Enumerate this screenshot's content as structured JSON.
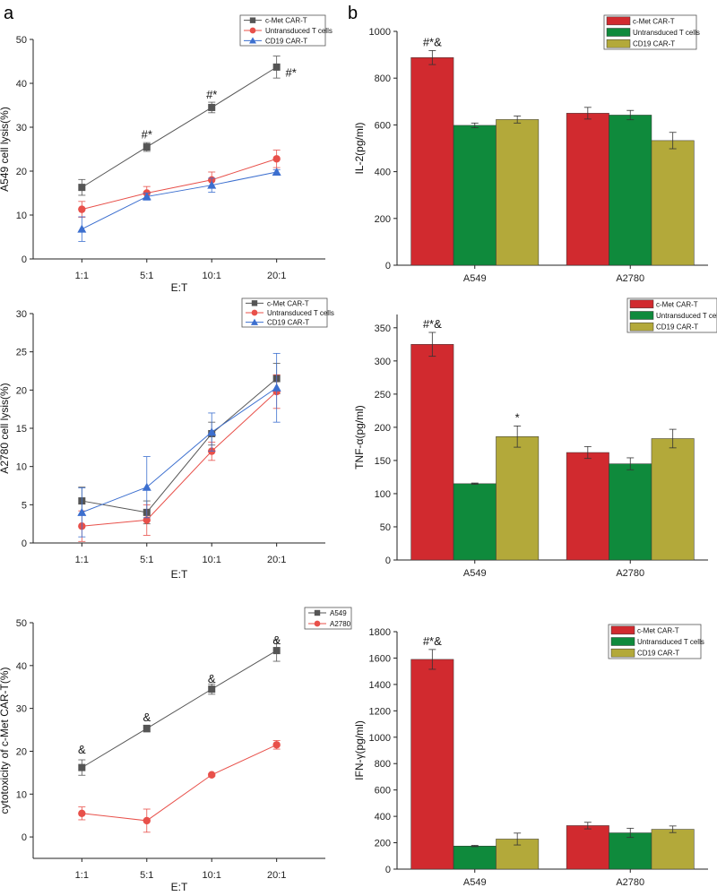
{
  "panel_labels": [
    "a",
    "b"
  ],
  "colors": {
    "cmet_line": "#555555",
    "untrans_line": "#e8504a",
    "cd19_line": "#3c6fcf",
    "bar_red": "#d12a2f",
    "bar_green": "#0f8a3c",
    "bar_olive": "#b3a93a",
    "a549_line": "#555555",
    "a2780_line": "#e8504a"
  },
  "chart_data": [
    {
      "id": "a549-lysis",
      "type": "line",
      "categories": [
        "1:1",
        "5:1",
        "10:1",
        "20:1"
      ],
      "xlabel": "E:T",
      "ylabel": "A549 cell lysis(%)",
      "ylim": [
        0,
        50
      ],
      "yticks": [
        0,
        10,
        20,
        30,
        40,
        50
      ],
      "series": [
        {
          "name": "c-Met CAR-T",
          "marker": "square",
          "color": "#555555",
          "values": [
            16.3,
            25.5,
            34.5,
            43.7
          ],
          "errors": [
            1.8,
            1.0,
            1.2,
            2.5
          ]
        },
        {
          "name": "Untransduced T cells",
          "marker": "circle",
          "color": "#e8504a",
          "values": [
            11.3,
            15.0,
            18.0,
            22.8
          ],
          "errors": [
            1.8,
            1.5,
            1.8,
            2.0
          ]
        },
        {
          "name": "CD19 CAR-T",
          "marker": "triangle",
          "color": "#3c6fcf",
          "values": [
            6.8,
            14.2,
            16.8,
            19.8
          ],
          "errors": [
            2.8,
            0.8,
            1.6,
            0.5
          ]
        }
      ],
      "annotations": [
        {
          "x": "5:1",
          "y": 27.5,
          "text": "#*"
        },
        {
          "x": "10:1",
          "y": 36.5,
          "text": "#*"
        },
        {
          "x": "20:1",
          "y": 41.5,
          "text": "#*",
          "side": "right"
        }
      ]
    },
    {
      "id": "a2780-lysis",
      "type": "line",
      "categories": [
        "1:1",
        "5:1",
        "10:1",
        "20:1"
      ],
      "xlabel": "E:T",
      "ylabel": "A2780 cell lysis(%)",
      "ylim": [
        0,
        30
      ],
      "yticks": [
        0,
        5,
        10,
        15,
        20,
        25,
        30
      ],
      "series": [
        {
          "name": "c-Met CAR-T",
          "marker": "square",
          "color": "#555555",
          "values": [
            5.5,
            4.0,
            14.3,
            21.5
          ],
          "errors": [
            1.8,
            1.5,
            1.5,
            2.0
          ]
        },
        {
          "name": "Untransduced T cells",
          "marker": "circle",
          "color": "#e8504a",
          "values": [
            2.2,
            3.0,
            12.0,
            19.8
          ],
          "errors": [
            2.0,
            2.0,
            1.2,
            2.2
          ]
        },
        {
          "name": "CD19 CAR-T",
          "marker": "triangle",
          "color": "#3c6fcf",
          "values": [
            4.0,
            7.3,
            14.5,
            20.3
          ],
          "errors": [
            3.2,
            4.0,
            2.5,
            4.5
          ]
        }
      ],
      "annotations": []
    },
    {
      "id": "cmet-cytotoxicity",
      "type": "line",
      "categories": [
        "1:1",
        "5:1",
        "10:1",
        "20:1"
      ],
      "xlabel": "E:T",
      "ylabel": "cytotoxicity of c-Met CAR-T(%)",
      "ylim": [
        -5,
        50
      ],
      "yticks": [
        0,
        10,
        20,
        30,
        40,
        50
      ],
      "series": [
        {
          "name": "A549",
          "marker": "square",
          "color": "#555555",
          "values": [
            16.2,
            25.3,
            34.5,
            43.5
          ],
          "errors": [
            1.8,
            0.8,
            1.2,
            2.5
          ]
        },
        {
          "name": "A2780",
          "marker": "circle",
          "color": "#e8504a",
          "values": [
            5.5,
            3.8,
            14.5,
            21.5
          ],
          "errors": [
            1.5,
            2.7,
            0.3,
            1.0
          ]
        }
      ],
      "annotations": [
        {
          "x": "1:1",
          "y": 19.5,
          "text": "&"
        },
        {
          "x": "5:1",
          "y": 27.0,
          "text": "&"
        },
        {
          "x": "10:1",
          "y": 36.0,
          "text": "&"
        },
        {
          "x": "20:1",
          "y": 45.0,
          "text": "&"
        }
      ]
    },
    {
      "id": "il2",
      "type": "bar",
      "categories": [
        "A549",
        "A2780"
      ],
      "ylabel": "IL-2(pg/ml)",
      "ylim": [
        0,
        1000
      ],
      "yticks": [
        0,
        200,
        400,
        600,
        800,
        1000
      ],
      "series": [
        {
          "name": "c-Met CAR-T",
          "color": "#d12a2f",
          "values": [
            888,
            650
          ],
          "errors": [
            30,
            25
          ]
        },
        {
          "name": "Untransduced T cells",
          "color": "#0f8a3c",
          "values": [
            598,
            642
          ],
          "errors": [
            10,
            20
          ]
        },
        {
          "name": "CD19 CAR-T",
          "color": "#b3a93a",
          "values": [
            623,
            533
          ],
          "errors": [
            15,
            35
          ]
        }
      ],
      "annotations": [
        {
          "category": "A549",
          "series": 0,
          "text": "#*&"
        }
      ]
    },
    {
      "id": "tnf",
      "type": "bar",
      "categories": [
        "A549",
        "A2780"
      ],
      "ylabel": "TNF-α(pg/ml)",
      "ylim": [
        0,
        370
      ],
      "yticks": [
        0,
        50,
        100,
        150,
        200,
        250,
        300,
        350
      ],
      "series": [
        {
          "name": "c-Met CAR-T",
          "color": "#d12a2f",
          "values": [
            325,
            162
          ],
          "errors": [
            18,
            9
          ]
        },
        {
          "name": "Untransduced T cells",
          "color": "#0f8a3c",
          "values": [
            115,
            145
          ],
          "errors": [
            1,
            9
          ]
        },
        {
          "name": "CD19 CAR-T",
          "color": "#b3a93a",
          "values": [
            186,
            183
          ],
          "errors": [
            16,
            14
          ]
        }
      ],
      "annotations": [
        {
          "category": "A549",
          "series": 0,
          "text": "#*&"
        },
        {
          "category": "A549",
          "series": 2,
          "text": "*"
        }
      ]
    },
    {
      "id": "ifn",
      "type": "bar",
      "categories": [
        "A549",
        "A2780"
      ],
      "ylabel": "IFN-γ(pg/ml)",
      "ylim": [
        0,
        1800
      ],
      "yticks": [
        0,
        200,
        400,
        600,
        800,
        1000,
        1200,
        1400,
        1600,
        1800
      ],
      "series": [
        {
          "name": "c-Met CAR-T",
          "color": "#d12a2f",
          "values": [
            1590,
            330
          ],
          "errors": [
            75,
            25
          ]
        },
        {
          "name": "Untransduced T cells",
          "color": "#0f8a3c",
          "values": [
            175,
            275
          ],
          "errors": [
            5,
            35
          ]
        },
        {
          "name": "CD19 CAR-T",
          "color": "#b3a93a",
          "values": [
            228,
            302
          ],
          "errors": [
            45,
            25
          ]
        }
      ],
      "annotations": [
        {
          "category": "A549",
          "series": 0,
          "text": "#*&"
        }
      ]
    }
  ]
}
